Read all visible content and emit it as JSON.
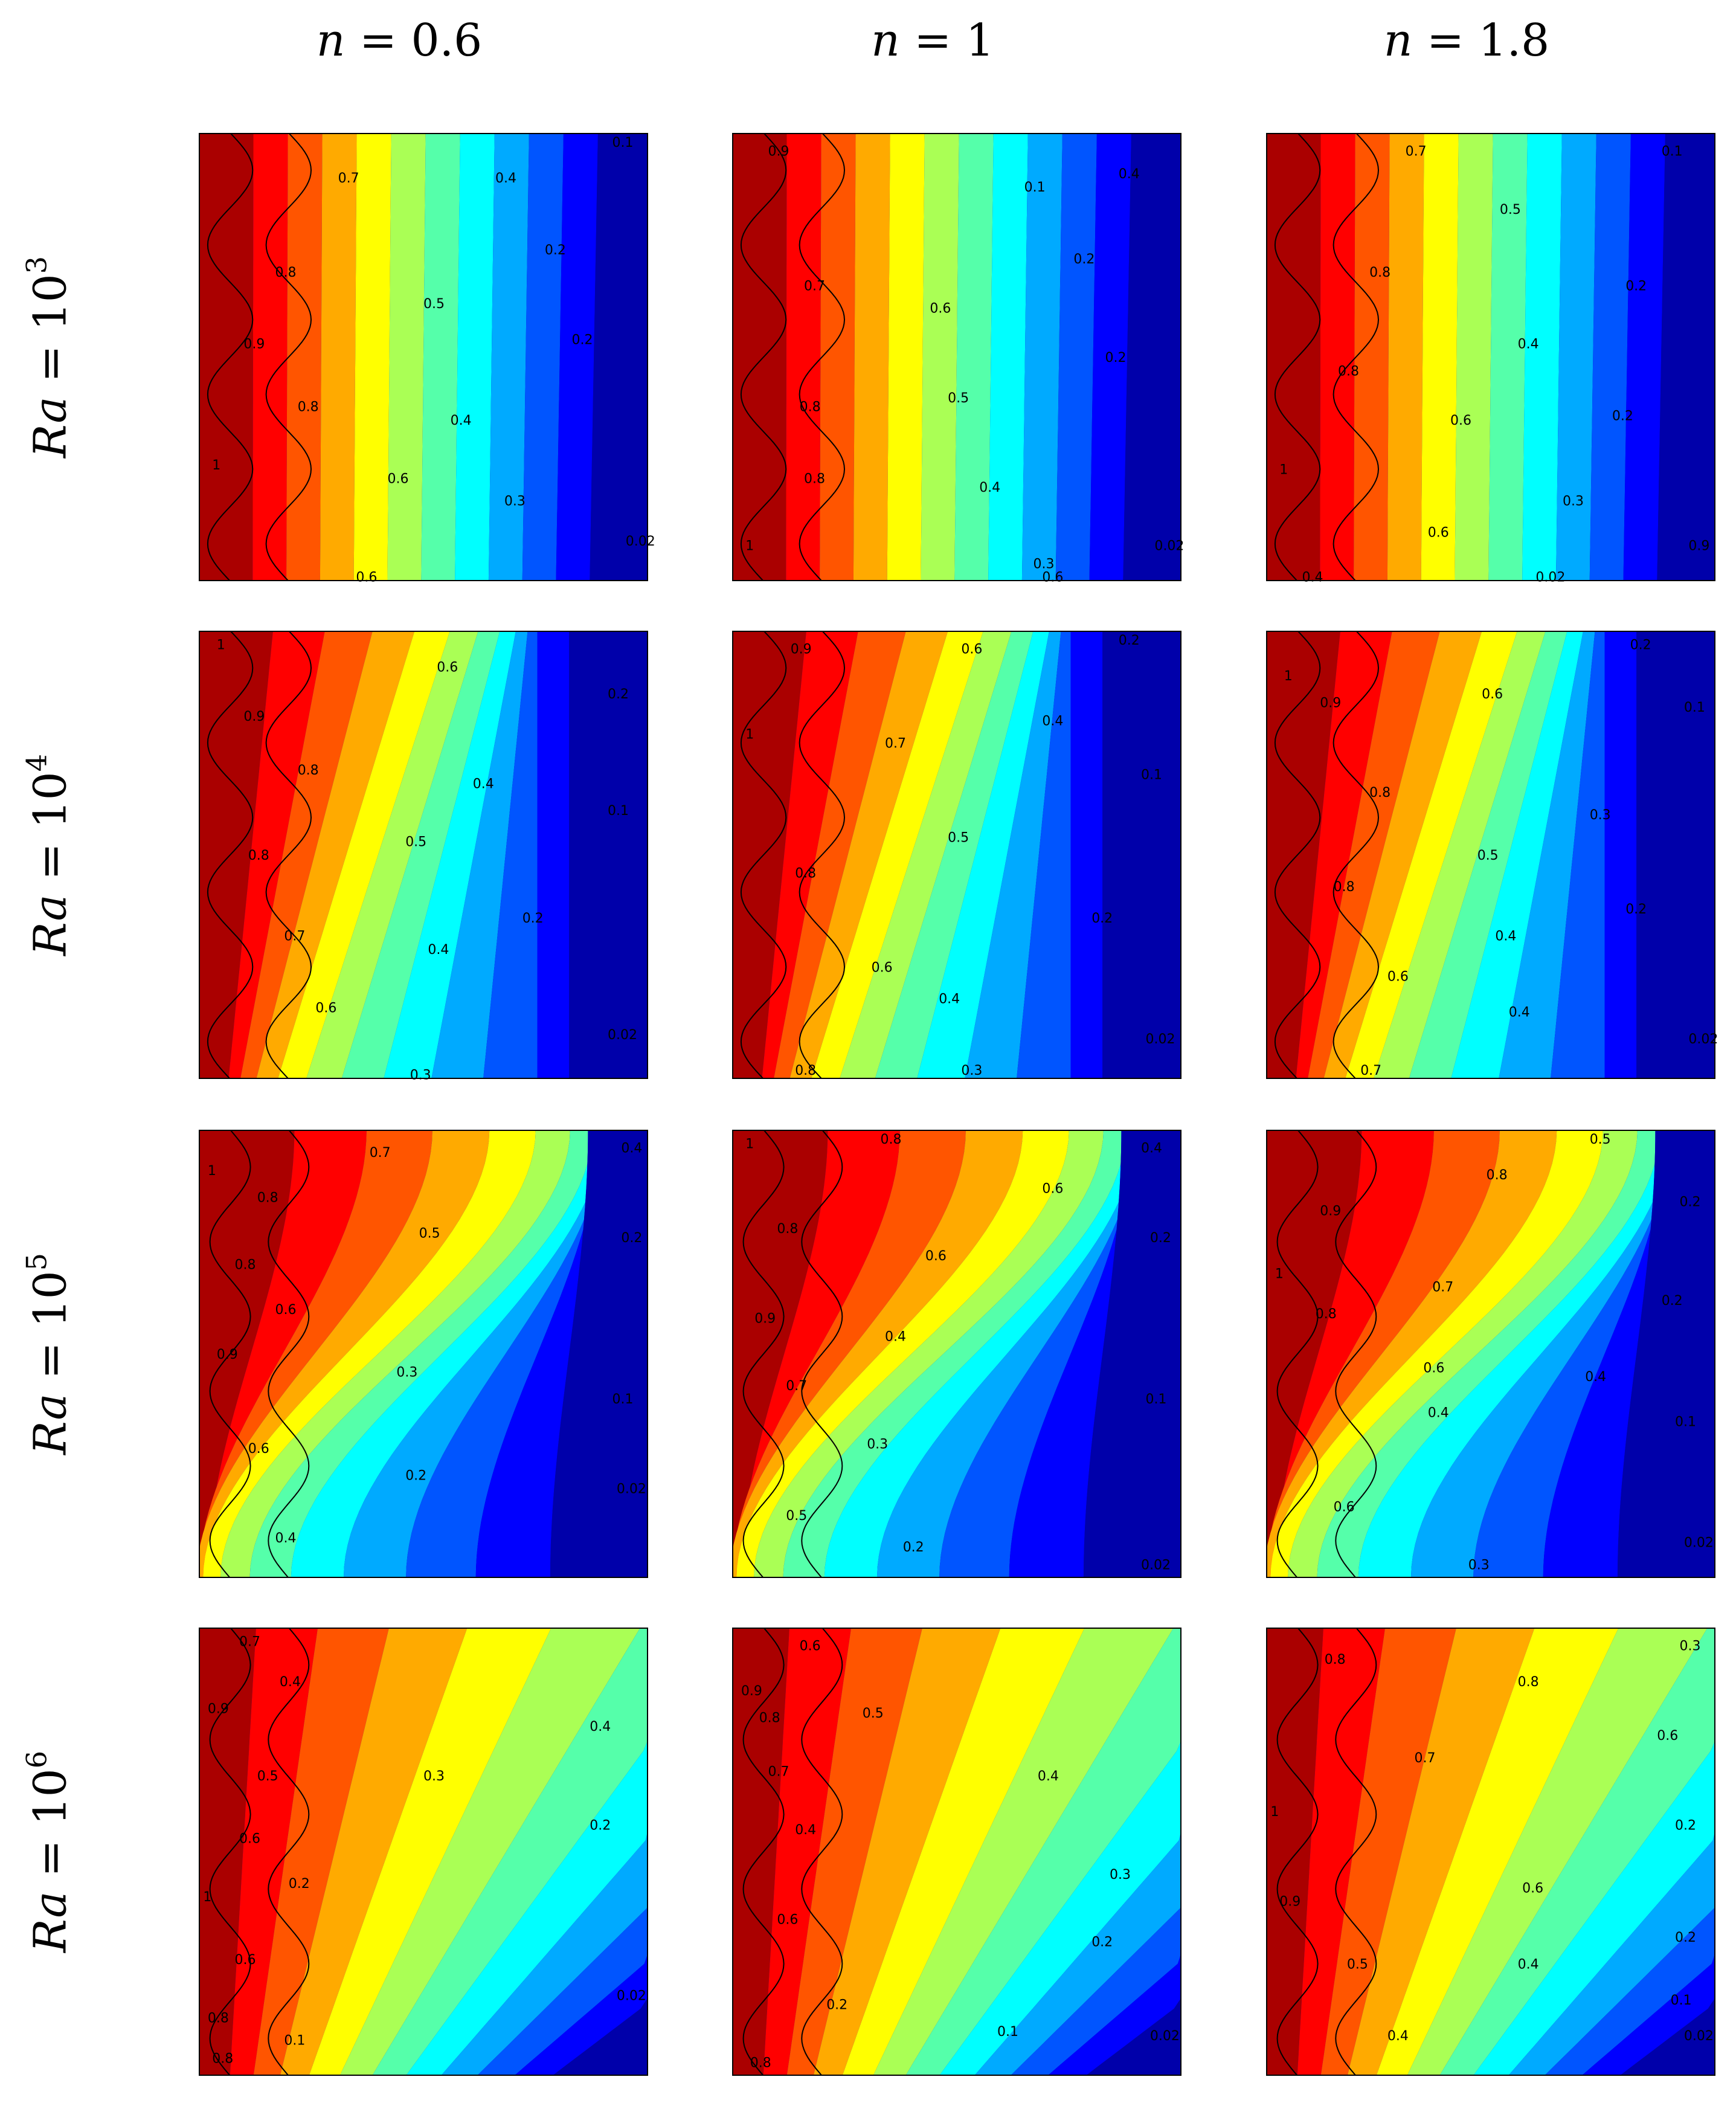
{
  "headers": {
    "columns": [
      {
        "var": "n",
        "rest": " = 0.6"
      },
      {
        "var": "n",
        "rest": " = 1"
      },
      {
        "var": "n",
        "rest": " = 1.8"
      }
    ],
    "rows": [
      {
        "var": "Ra",
        "rest": " = 10",
        "exp": "3"
      },
      {
        "var": "Ra",
        "rest": " = 10",
        "exp": "4"
      },
      {
        "var": "Ra",
        "rest": " = 10",
        "exp": "5"
      },
      {
        "var": "Ra",
        "rest": " = 10",
        "exp": "6"
      }
    ]
  },
  "chart_data": {
    "type": "heatmap",
    "layout": "4x3 grid of filled isotherm contour plots",
    "colormap": "jet",
    "colorbar": "none",
    "contour_levels": [
      0.02,
      0.1,
      0.2,
      0.3,
      0.4,
      0.5,
      0.6,
      0.7,
      0.8,
      0.9,
      1
    ],
    "left_wall": "sinusoidal, temperature 1",
    "right_wall": "flat, temperature 0",
    "axes_ticks": "none",
    "panels": [
      {
        "row": 0,
        "col": 0,
        "labels": [
          "0.7",
          "0.4",
          "0.1",
          "0.8",
          "0.2",
          "0.9",
          "0.5",
          "0.2",
          "0.8",
          "0.4",
          "1",
          "0.6",
          "0.3",
          "0.02",
          "0.6"
        ]
      },
      {
        "row": 0,
        "col": 1,
        "labels": [
          "0.9",
          "0.4",
          "0.1",
          "0.7",
          "0.2",
          "0.6",
          "0.2",
          "0.5",
          "0.8",
          "0.8",
          "0.4",
          "1",
          "0.3",
          "0.02",
          "0.6"
        ]
      },
      {
        "row": 0,
        "col": 2,
        "labels": [
          "0.7",
          "0.1",
          "0.5",
          "0.8",
          "0.2",
          "0.4",
          "0.8",
          "0.2",
          "0.6",
          "1",
          "0.3",
          "0.6",
          "0.02",
          "0.9",
          "0.4"
        ]
      },
      {
        "row": 1,
        "col": 0,
        "labels": [
          "1",
          "0.6",
          "0.9",
          "0.2",
          "0.8",
          "0.4",
          "0.1",
          "0.5",
          "0.8",
          "0.2",
          "0.7",
          "0.4",
          "0.6",
          "0.02",
          "0.3"
        ]
      },
      {
        "row": 1,
        "col": 1,
        "labels": [
          "0.9",
          "0.6",
          "0.2",
          "0.4",
          "1",
          "0.7",
          "0.1",
          "0.5",
          "0.8",
          "0.2",
          "0.6",
          "0.4",
          "0.02",
          "0.3",
          "0.8"
        ]
      },
      {
        "row": 1,
        "col": 2,
        "labels": [
          "0.2",
          "1",
          "0.9",
          "0.6",
          "0.1",
          "0.8",
          "0.3",
          "0.5",
          "0.8",
          "0.2",
          "0.4",
          "0.6",
          "0.4",
          "0.02",
          "0.7"
        ]
      },
      {
        "row": 2,
        "col": 0,
        "labels": [
          "0.7",
          "0.4",
          "1",
          "0.8",
          "0.5",
          "0.2",
          "0.8",
          "0.6",
          "0.9",
          "0.3",
          "0.1",
          "0.6",
          "0.2",
          "0.02",
          "0.4"
        ]
      },
      {
        "row": 2,
        "col": 1,
        "labels": [
          "1",
          "0.8",
          "0.4",
          "0.6",
          "0.8",
          "0.6",
          "0.2",
          "0.9",
          "0.4",
          "0.7",
          "0.1",
          "0.3",
          "0.5",
          "0.2",
          "0.02"
        ]
      },
      {
        "row": 2,
        "col": 2,
        "labels": [
          "0.5",
          "0.8",
          "0.9",
          "0.2",
          "1",
          "0.7",
          "0.2",
          "0.8",
          "0.6",
          "0.4",
          "0.1",
          "0.4",
          "0.6",
          "0.02",
          "0.3"
        ]
      },
      {
        "row": 3,
        "col": 0,
        "labels": [
          "0.7",
          "0.4",
          "0.9",
          "0.4",
          "0.5",
          "0.3",
          "0.6",
          "0.2",
          "1",
          "0.2",
          "0.6",
          "0.02",
          "0.8",
          "0.1",
          "0.8"
        ]
      },
      {
        "row": 3,
        "col": 1,
        "labels": [
          "0.6",
          "0.9",
          "0.8",
          "0.5",
          "0.7",
          "0.4",
          "0.4",
          "0.3",
          "0.6",
          "0.2",
          "0.2",
          "0.1",
          "0.02",
          "0.8"
        ]
      },
      {
        "row": 3,
        "col": 2,
        "labels": [
          "0.8",
          "0.3",
          "0.8",
          "0.6",
          "0.7",
          "1",
          "0.2",
          "0.9",
          "0.6",
          "0.2",
          "0.5",
          "0.4",
          "0.1",
          "0.4",
          "0.02"
        ]
      }
    ]
  }
}
